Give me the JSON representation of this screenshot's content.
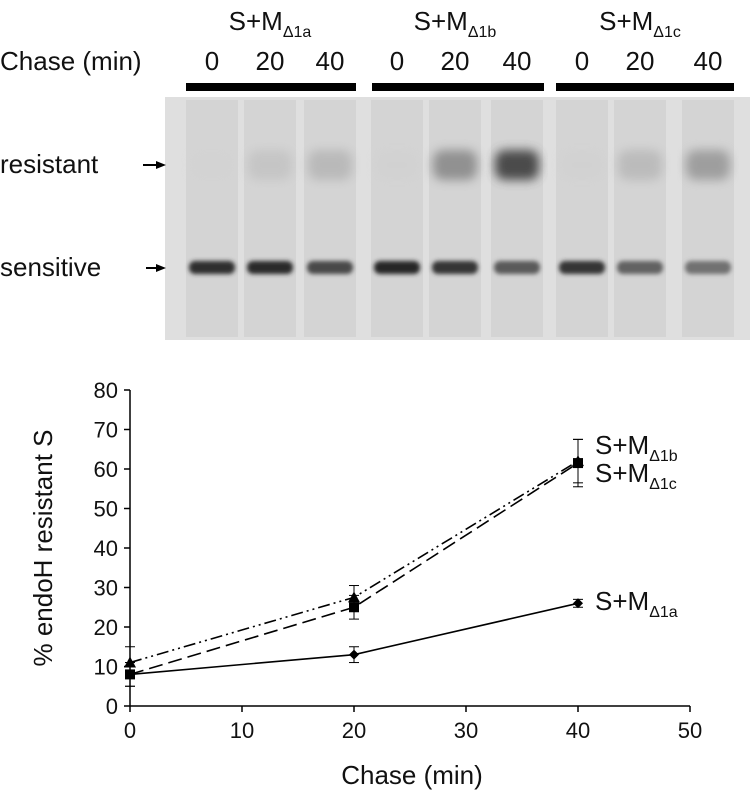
{
  "gel": {
    "chase_label": "Chase (min)",
    "band_labels": {
      "resistant": "resistant",
      "sensitive": "sensitive"
    },
    "groups": [
      {
        "prefix": "S+M",
        "subscript": "Δ1a",
        "times": [
          "0",
          "20",
          "40"
        ]
      },
      {
        "prefix": "S+M",
        "subscript": "Δ1b",
        "times": [
          "0",
          "20",
          "40"
        ]
      },
      {
        "prefix": "S+M",
        "subscript": "Δ1c",
        "times": [
          "0",
          "20",
          "40"
        ]
      }
    ],
    "lanes": [
      {
        "sensitive": 0.9,
        "resistant": 0.02
      },
      {
        "sensitive": 0.92,
        "resistant": 0.22
      },
      {
        "sensitive": 0.72,
        "resistant": 0.32
      },
      {
        "sensitive": 0.95,
        "resistant": 0.05
      },
      {
        "sensitive": 0.85,
        "resistant": 0.55
      },
      {
        "sensitive": 0.6,
        "resistant": 0.82
      },
      {
        "sensitive": 0.85,
        "resistant": 0.05
      },
      {
        "sensitive": 0.55,
        "resistant": 0.3
      },
      {
        "sensitive": 0.45,
        "resistant": 0.48
      }
    ]
  },
  "chart_data": {
    "type": "line",
    "xlabel": "Chase (min)",
    "ylabel": "% endoH resistant S",
    "xlim": [
      0,
      50
    ],
    "ylim": [
      0,
      80
    ],
    "xticks": [
      0,
      10,
      20,
      30,
      40,
      50
    ],
    "yticks": [
      0,
      10,
      20,
      30,
      40,
      50,
      60,
      70,
      80
    ],
    "grid": false,
    "x": [
      0,
      20,
      40
    ],
    "series": [
      {
        "prefix": "S+M",
        "subscript": "Δ1a",
        "values": [
          8,
          13,
          26
        ],
        "errors": [
          3,
          2,
          1
        ],
        "marker": "diamond",
        "dash": "solid"
      },
      {
        "prefix": "S+M",
        "subscript": "Δ1b",
        "values": [
          11,
          27.5,
          62
        ],
        "errors": [
          4,
          3,
          5.5
        ],
        "marker": "triangle",
        "dash": "dash-dot-dot"
      },
      {
        "prefix": "S+M",
        "subscript": "Δ1c",
        "values": [
          8,
          25,
          61.5
        ],
        "errors": [
          3,
          3,
          6
        ],
        "marker": "square",
        "dash": "dashed"
      }
    ]
  }
}
